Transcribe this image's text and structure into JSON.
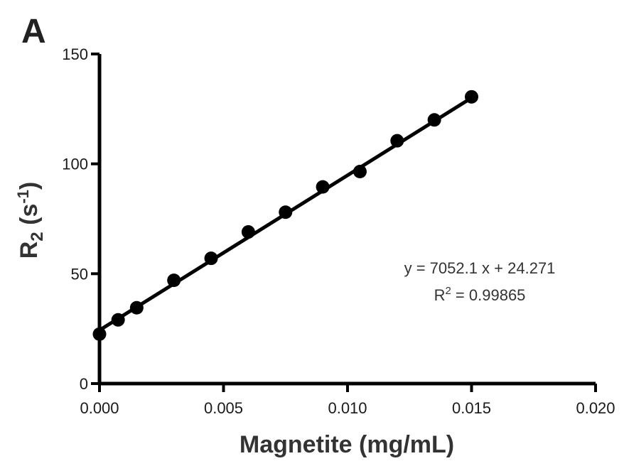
{
  "chart_data": {
    "type": "scatter",
    "panel_label": "A",
    "xlabel": "Magnetite (mg/mL)",
    "ylabel": {
      "main": "R",
      "sub": "2",
      "unit_pre": " (s",
      "unit_sup": "-1",
      "unit_post": ")"
    },
    "xlim": [
      0,
      0.02
    ],
    "ylim": [
      0,
      150
    ],
    "x_ticks": [
      0,
      0.005,
      0.01,
      0.015,
      0.02
    ],
    "x_tick_labels": [
      "0.000",
      "0.005",
      "0.010",
      "0.015",
      "0.020"
    ],
    "y_ticks": [
      0,
      50,
      100,
      150
    ],
    "y_tick_labels": [
      "0",
      "50",
      "100",
      "150"
    ],
    "grid": false,
    "series": [
      {
        "x": [
          0.0,
          0.00075,
          0.0015,
          0.003,
          0.0045,
          0.006,
          0.0075,
          0.009,
          0.0105,
          0.012,
          0.0135,
          0.015
        ],
        "y": [
          22.5,
          29,
          34.5,
          47,
          57,
          69,
          78,
          89.5,
          96.5,
          110.5,
          120,
          130.5
        ]
      }
    ],
    "fit_line": {
      "slope": 7052.1,
      "intercept": 24.271,
      "x_range": [
        0,
        0.015
      ]
    },
    "annotation": {
      "equation": "y = 7052.1 x + 24.271",
      "r2_prefix": "R",
      "r2_sup": "2",
      "r2_value": " = 0.99865"
    }
  }
}
